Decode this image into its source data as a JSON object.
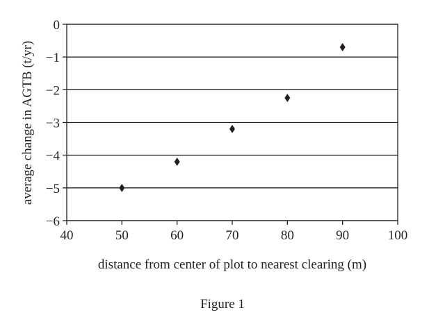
{
  "chart_data": {
    "type": "scatter",
    "title": "",
    "xlabel": "distance from center of plot to nearest clearing (m)",
    "ylabel": "average change in AGTB (t/yr)",
    "caption": "Figure 1",
    "xlim": [
      40,
      100
    ],
    "ylim": [
      -6,
      0
    ],
    "xticks": [
      40,
      50,
      60,
      70,
      80,
      90,
      100
    ],
    "yticks": [
      0,
      -1,
      -2,
      -3,
      -4,
      -5,
      -6
    ],
    "xtick_labels": [
      "40",
      "50",
      "60",
      "70",
      "80",
      "90",
      "100"
    ],
    "ytick_labels": [
      "0",
      "−1",
      "−2",
      "−3",
      "−4",
      "−5",
      "−6"
    ],
    "grid": "horizontal",
    "marker": "diamond",
    "marker_color": "#231f20",
    "x": [
      50,
      60,
      70,
      80,
      90
    ],
    "y": [
      -5.0,
      -4.2,
      -3.2,
      -2.25,
      -0.7
    ]
  }
}
